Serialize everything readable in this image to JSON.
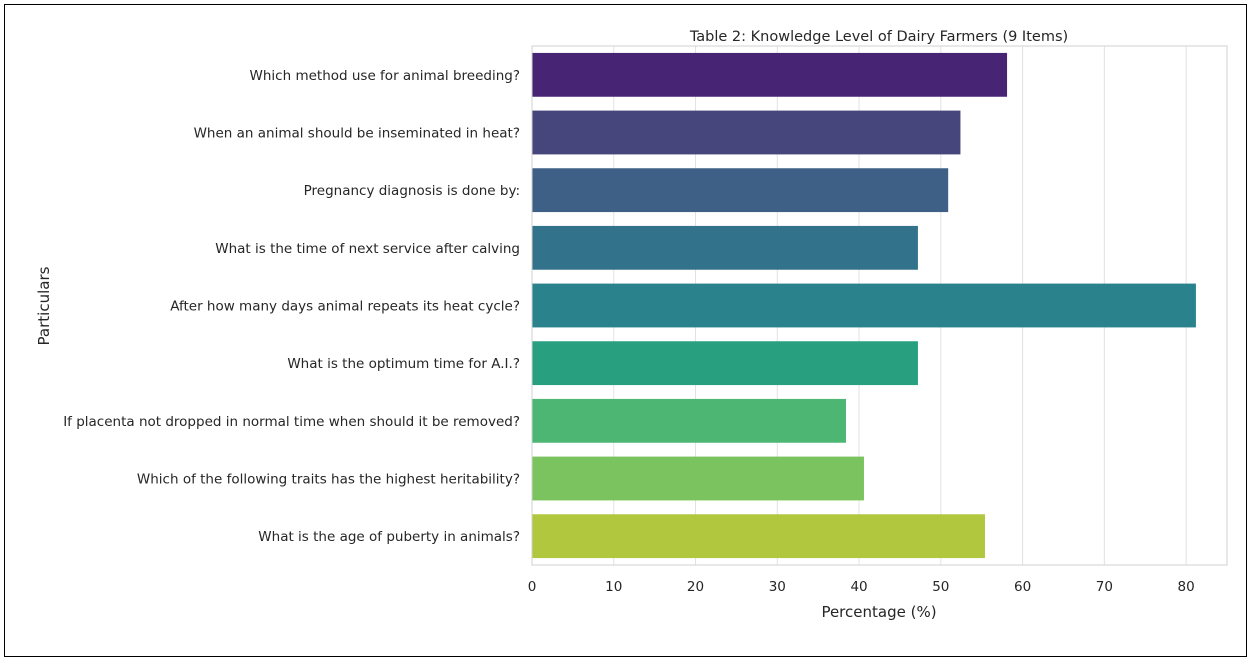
{
  "chart_data": {
    "type": "bar",
    "orientation": "horizontal",
    "title": "Table 2: Knowledge Level of Dairy Farmers (9 Items)",
    "xlabel": "Percentage (%)",
    "ylabel": "Particulars",
    "xlim": [
      0,
      85
    ],
    "xticks": [
      0,
      10,
      20,
      30,
      40,
      50,
      60,
      70,
      80
    ],
    "grid": "vertical",
    "categories": [
      "Which method use for animal breeding?",
      "When an animal should be inseminated in heat?",
      "Pregnancy diagnosis is done by:",
      "What is the time of next service after calving",
      "After how many days animal repeats its heat cycle?",
      "What is the optimum time for A.I.?",
      "If placenta not dropped in normal time when should it be removed?",
      "Which of the following traits has the highest heritability?",
      "What is the age of puberty in animals?"
    ],
    "values": [
      58.1,
      52.4,
      50.9,
      47.2,
      81.2,
      47.2,
      38.4,
      40.6,
      55.4
    ],
    "colors": [
      "#482475",
      "#46467c",
      "#3e5f86",
      "#32728a",
      "#2a838c",
      "#28a07f",
      "#4db672",
      "#7ac35e",
      "#b1c83e"
    ]
  }
}
